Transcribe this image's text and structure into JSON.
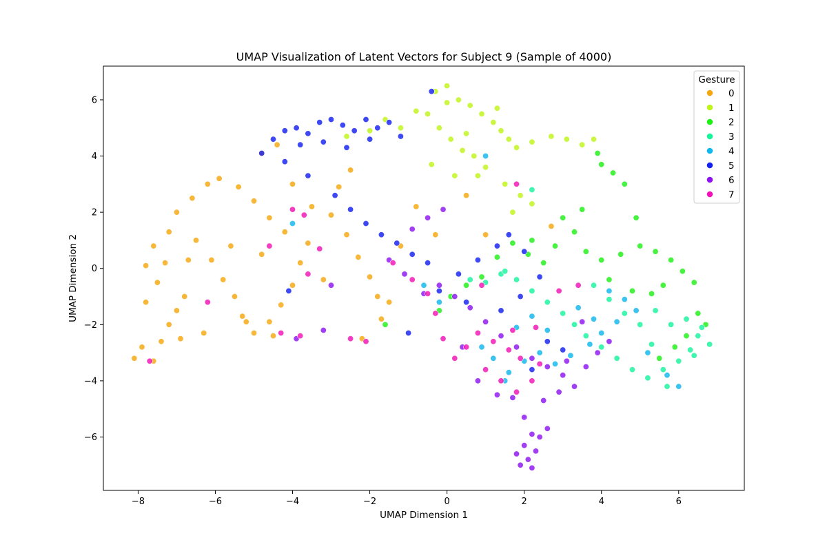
{
  "chart_data": {
    "type": "scatter",
    "title": "UMAP Visualization of Latent Vectors for Subject 9 (Sample of 4000)",
    "xlabel": "UMAP Dimension 1",
    "ylabel": "UMAP Dimension 2",
    "xlim": [
      -8.9,
      7.7
    ],
    "ylim": [
      -7.9,
      7.2
    ],
    "xticks": [
      -8,
      -6,
      -4,
      -2,
      0,
      2,
      4,
      6
    ],
    "yticks": [
      -6,
      -4,
      -2,
      0,
      2,
      4,
      6
    ],
    "xtick_labels": [
      "−8",
      "−6",
      "−4",
      "−2",
      "0",
      "2",
      "4",
      "6"
    ],
    "ytick_labels": [
      "−6",
      "−4",
      "−2",
      "0",
      "2",
      "4",
      "6"
    ],
    "grid": false,
    "legend": {
      "title": "Gesture",
      "position": "top-right"
    },
    "series": [
      {
        "name": "0",
        "color": "#F5A70F",
        "points": [
          [
            -8.1,
            -3.2
          ],
          [
            -7.9,
            -2.8
          ],
          [
            -7.6,
            -3.3
          ],
          [
            -7.4,
            -2.6
          ],
          [
            -7.2,
            -2.0
          ],
          [
            -7.0,
            -1.5
          ],
          [
            -6.8,
            -1.0
          ],
          [
            -7.5,
            -0.5
          ],
          [
            -7.3,
            0.2
          ],
          [
            -7.6,
            0.8
          ],
          [
            -7.2,
            1.3
          ],
          [
            -7.0,
            2.0
          ],
          [
            -6.6,
            2.5
          ],
          [
            -6.2,
            3.0
          ],
          [
            -5.9,
            3.2
          ],
          [
            -6.5,
            1.0
          ],
          [
            -6.1,
            0.3
          ],
          [
            -5.8,
            -0.4
          ],
          [
            -5.5,
            -1.0
          ],
          [
            -5.3,
            -1.7
          ],
          [
            -5.0,
            -2.3
          ],
          [
            -4.6,
            -1.9
          ],
          [
            -4.3,
            -1.3
          ],
          [
            -4.0,
            -0.6
          ],
          [
            -3.8,
            0.2
          ],
          [
            -3.6,
            0.9
          ],
          [
            -4.2,
            1.3
          ],
          [
            -4.6,
            1.8
          ],
          [
            -5.0,
            2.4
          ],
          [
            -5.4,
            2.9
          ],
          [
            -4.0,
            3.0
          ],
          [
            -3.5,
            2.2
          ],
          [
            -3.0,
            1.9
          ],
          [
            -2.6,
            1.2
          ],
          [
            -2.3,
            0.4
          ],
          [
            -2.0,
            -0.3
          ],
          [
            -1.8,
            -1.0
          ],
          [
            -1.7,
            -1.8
          ],
          [
            -2.2,
            -2.5
          ],
          [
            -2.8,
            2.9
          ],
          [
            -2.5,
            3.5
          ],
          [
            -4.4,
            4.4
          ],
          [
            -4.8,
            4.1
          ],
          [
            -6.9,
            -2.5
          ],
          [
            -7.8,
            -1.2
          ],
          [
            -6.3,
            -2.3
          ],
          [
            -5.6,
            0.8
          ],
          [
            -4.8,
            0.5
          ],
          [
            -3.2,
            -0.4
          ],
          [
            -1.2,
            0.8
          ],
          [
            -0.3,
            1.2
          ],
          [
            0.5,
            2.6
          ],
          [
            1.0,
            1.2
          ],
          [
            2.7,
            1.5
          ],
          [
            -0.8,
            2.2
          ],
          [
            -6.7,
            0.3
          ],
          [
            -7.8,
            0.1
          ],
          [
            -5.2,
            -1.9
          ],
          [
            -4.5,
            -2.4
          ],
          [
            -1.5,
            -1.2
          ]
        ]
      },
      {
        "name": "1",
        "color": "#BFF51A",
        "points": [
          [
            -0.3,
            6.3
          ],
          [
            0.0,
            6.5
          ],
          [
            0.3,
            6.0
          ],
          [
            0.6,
            5.8
          ],
          [
            0.9,
            5.5
          ],
          [
            1.2,
            5.2
          ],
          [
            -0.5,
            5.5
          ],
          [
            -0.2,
            5.0
          ],
          [
            0.1,
            4.6
          ],
          [
            0.4,
            4.2
          ],
          [
            0.7,
            4.0
          ],
          [
            1.0,
            3.6
          ],
          [
            0.2,
            3.3
          ],
          [
            0.5,
            4.8
          ],
          [
            1.4,
            4.9
          ],
          [
            1.6,
            4.6
          ],
          [
            1.8,
            4.3
          ],
          [
            2.2,
            4.5
          ],
          [
            2.7,
            4.7
          ],
          [
            3.1,
            4.6
          ],
          [
            3.5,
            4.4
          ],
          [
            3.8,
            4.6
          ],
          [
            1.5,
            3.0
          ],
          [
            1.9,
            2.6
          ],
          [
            2.2,
            2.3
          ],
          [
            1.7,
            2.0
          ],
          [
            -1.6,
            5.3
          ],
          [
            -1.2,
            5.0
          ],
          [
            -0.8,
            5.6
          ],
          [
            -2.6,
            4.7
          ],
          [
            -2.0,
            4.9
          ],
          [
            0.8,
            3.3
          ],
          [
            -0.4,
            3.7
          ],
          [
            1.3,
            5.7
          ],
          [
            0.0,
            5.9
          ]
        ]
      },
      {
        "name": "2",
        "color": "#1EF016",
        "points": [
          [
            4.0,
            3.7
          ],
          [
            4.3,
            3.4
          ],
          [
            4.6,
            3.0
          ],
          [
            3.9,
            4.1
          ],
          [
            3.5,
            2.1
          ],
          [
            3.0,
            1.8
          ],
          [
            3.3,
            1.3
          ],
          [
            2.8,
            0.8
          ],
          [
            3.6,
            0.6
          ],
          [
            4.0,
            0.3
          ],
          [
            4.5,
            0.5
          ],
          [
            5.0,
            0.8
          ],
          [
            5.4,
            0.6
          ],
          [
            5.8,
            0.3
          ],
          [
            6.1,
            -0.1
          ],
          [
            6.4,
            -0.5
          ],
          [
            4.2,
            -0.4
          ],
          [
            4.8,
            -0.8
          ],
          [
            5.3,
            -0.9
          ],
          [
            5.6,
            -0.6
          ],
          [
            2.5,
            0.2
          ],
          [
            2.1,
            0.5
          ],
          [
            1.7,
            0.9
          ],
          [
            1.3,
            0.4
          ],
          [
            0.9,
            -0.3
          ],
          [
            0.5,
            -0.6
          ],
          [
            0.1,
            -1.0
          ],
          [
            -0.2,
            -1.5
          ],
          [
            6.5,
            -1.6
          ],
          [
            6.7,
            -2.0
          ],
          [
            6.2,
            -2.4
          ],
          [
            5.9,
            -2.8
          ],
          [
            5.5,
            -3.2
          ],
          [
            -1.6,
            -2.0
          ],
          [
            2.2,
            1.0
          ],
          [
            4.9,
            1.8
          ]
        ]
      },
      {
        "name": "3",
        "color": "#17F49C",
        "points": [
          [
            5.4,
            -1.5
          ],
          [
            5.8,
            -2.0
          ],
          [
            6.2,
            -1.8
          ],
          [
            6.5,
            -2.4
          ],
          [
            6.8,
            -2.7
          ],
          [
            6.4,
            -3.1
          ],
          [
            6.0,
            -3.3
          ],
          [
            5.6,
            -3.6
          ],
          [
            5.2,
            -3.9
          ],
          [
            4.8,
            -3.6
          ],
          [
            4.4,
            -3.2
          ],
          [
            4.0,
            -2.8
          ],
          [
            3.6,
            -2.4
          ],
          [
            3.3,
            -2.0
          ],
          [
            3.0,
            -1.6
          ],
          [
            2.6,
            -1.2
          ],
          [
            2.2,
            -0.8
          ],
          [
            1.8,
            -0.4
          ],
          [
            1.4,
            -0.2
          ],
          [
            1.0,
            -0.5
          ],
          [
            0.6,
            -0.4
          ],
          [
            5.0,
            -2.0
          ],
          [
            5.3,
            -2.7
          ],
          [
            4.6,
            -1.6
          ],
          [
            4.2,
            -1.1
          ],
          [
            3.8,
            -0.6
          ],
          [
            6.3,
            -2.9
          ],
          [
            6.6,
            -2.1
          ],
          [
            2.2,
            2.8
          ],
          [
            1.5,
            -0.1
          ],
          [
            5.7,
            -4.2
          ]
        ]
      },
      {
        "name": "4",
        "color": "#11B7EE",
        "points": [
          [
            4.2,
            -0.8
          ],
          [
            4.6,
            -1.1
          ],
          [
            4.9,
            -1.5
          ],
          [
            4.4,
            -1.9
          ],
          [
            4.0,
            -2.3
          ],
          [
            3.7,
            -2.7
          ],
          [
            3.2,
            -3.1
          ],
          [
            2.8,
            -3.4
          ],
          [
            2.4,
            -3.0
          ],
          [
            2.0,
            -3.3
          ],
          [
            1.6,
            -3.7
          ],
          [
            1.2,
            -3.2
          ],
          [
            0.9,
            -2.8
          ],
          [
            1.8,
            -2.1
          ],
          [
            2.2,
            -1.7
          ],
          [
            2.6,
            -2.2
          ],
          [
            3.4,
            -1.4
          ],
          [
            3.8,
            -1.8
          ],
          [
            5.2,
            -3.0
          ],
          [
            5.7,
            -3.8
          ],
          [
            6.0,
            -4.2
          ],
          [
            -0.6,
            -0.6
          ],
          [
            -0.2,
            -1.2
          ],
          [
            1.5,
            -4.0
          ],
          [
            -4.0,
            1.6
          ],
          [
            1.0,
            4.0
          ]
        ]
      },
      {
        "name": "5",
        "color": "#1421F0",
        "points": [
          [
            -4.8,
            4.1
          ],
          [
            -4.5,
            4.6
          ],
          [
            -4.2,
            4.9
          ],
          [
            -3.9,
            5.0
          ],
          [
            -3.6,
            4.8
          ],
          [
            -3.3,
            5.2
          ],
          [
            -3.0,
            5.3
          ],
          [
            -2.7,
            5.1
          ],
          [
            -2.4,
            4.9
          ],
          [
            -2.1,
            5.3
          ],
          [
            -1.8,
            5.0
          ],
          [
            -1.5,
            5.2
          ],
          [
            -1.2,
            4.7
          ],
          [
            -3.8,
            4.4
          ],
          [
            -3.2,
            4.5
          ],
          [
            -2.6,
            4.3
          ],
          [
            -2.0,
            4.6
          ],
          [
            -0.4,
            6.3
          ],
          [
            -4.2,
            3.8
          ],
          [
            -3.6,
            3.3
          ],
          [
            -2.9,
            2.6
          ],
          [
            -2.5,
            2.1
          ],
          [
            -2.1,
            1.6
          ],
          [
            -1.7,
            1.2
          ],
          [
            -1.3,
            0.9
          ],
          [
            -0.9,
            0.5
          ],
          [
            -0.5,
            0.2
          ],
          [
            0.3,
            -0.2
          ],
          [
            0.8,
            0.3
          ],
          [
            1.3,
            0.8
          ],
          [
            1.6,
            1.2
          ],
          [
            2.0,
            0.6
          ],
          [
            2.4,
            -0.3
          ],
          [
            1.9,
            -1.0
          ],
          [
            1.4,
            -1.5
          ],
          [
            2.6,
            -2.6
          ],
          [
            3.0,
            -2.9
          ],
          [
            -0.2,
            -0.8
          ],
          [
            0.5,
            -1.2
          ],
          [
            2.2,
            -3.6
          ],
          [
            -4.1,
            -0.8
          ],
          [
            -1.0,
            -2.3
          ]
        ]
      },
      {
        "name": "6",
        "color": "#8E13F0",
        "points": [
          [
            2.0,
            -6.3
          ],
          [
            2.1,
            -6.8
          ],
          [
            2.2,
            -7.1
          ],
          [
            1.9,
            -7.0
          ],
          [
            2.3,
            -6.5
          ],
          [
            2.4,
            -6.0
          ],
          [
            2.6,
            -5.7
          ],
          [
            2.2,
            -5.9
          ],
          [
            1.8,
            -6.6
          ],
          [
            2.0,
            -5.3
          ],
          [
            2.5,
            -4.7
          ],
          [
            2.9,
            -4.4
          ],
          [
            3.3,
            -4.2
          ],
          [
            3.0,
            -3.8
          ],
          [
            2.6,
            -3.5
          ],
          [
            2.2,
            -3.2
          ],
          [
            1.8,
            -2.8
          ],
          [
            1.4,
            -2.4
          ],
          [
            1.0,
            -1.9
          ],
          [
            0.6,
            -1.4
          ],
          [
            0.2,
            -1.0
          ],
          [
            -0.2,
            -0.6
          ],
          [
            -0.6,
            -0.9
          ],
          [
            3.6,
            -3.5
          ],
          [
            3.9,
            -3.0
          ],
          [
            4.2,
            -2.6
          ],
          [
            3.5,
            -1.9
          ],
          [
            0.8,
            -4.0
          ],
          [
            1.3,
            -4.5
          ],
          [
            -1.1,
            -0.2
          ],
          [
            -0.5,
            1.8
          ],
          [
            -0.1,
            2.1
          ],
          [
            -3.9,
            -2.5
          ],
          [
            -3.2,
            -2.2
          ],
          [
            -1.5,
            0.3
          ],
          [
            -3.0,
            -0.6
          ],
          [
            0.4,
            -2.8
          ],
          [
            1.7,
            -4.6
          ],
          [
            3.1,
            -3.3
          ],
          [
            -0.9,
            1.4
          ]
        ]
      },
      {
        "name": "7",
        "color": "#F012B6",
        "points": [
          [
            1.6,
            -2.9
          ],
          [
            1.9,
            -3.2
          ],
          [
            1.2,
            -2.6
          ],
          [
            0.8,
            -2.3
          ],
          [
            0.5,
            -2.8
          ],
          [
            0.2,
            -3.2
          ],
          [
            -0.1,
            -2.5
          ],
          [
            1.0,
            -3.6
          ],
          [
            1.4,
            -4.0
          ],
          [
            1.8,
            -4.4
          ],
          [
            2.2,
            -4.0
          ],
          [
            2.4,
            -3.4
          ],
          [
            1.7,
            -2.2
          ],
          [
            2.3,
            -2.1
          ],
          [
            -0.5,
            -0.9
          ],
          [
            -0.9,
            -0.4
          ],
          [
            -1.4,
            0.2
          ],
          [
            -2.1,
            -2.6
          ],
          [
            -2.5,
            -2.5
          ],
          [
            -3.8,
            -2.4
          ],
          [
            -4.3,
            -2.3
          ],
          [
            -4.0,
            2.1
          ],
          [
            -3.7,
            1.9
          ],
          [
            -3.3,
            0.7
          ],
          [
            -3.6,
            -0.2
          ],
          [
            -6.2,
            -1.2
          ],
          [
            -7.7,
            -3.3
          ],
          [
            -4.6,
            0.8
          ],
          [
            1.8,
            3.0
          ],
          [
            0.9,
            -0.6
          ],
          [
            -0.3,
            -1.6
          ],
          [
            2.9,
            -0.8
          ],
          [
            3.4,
            -0.6
          ]
        ]
      }
    ]
  }
}
